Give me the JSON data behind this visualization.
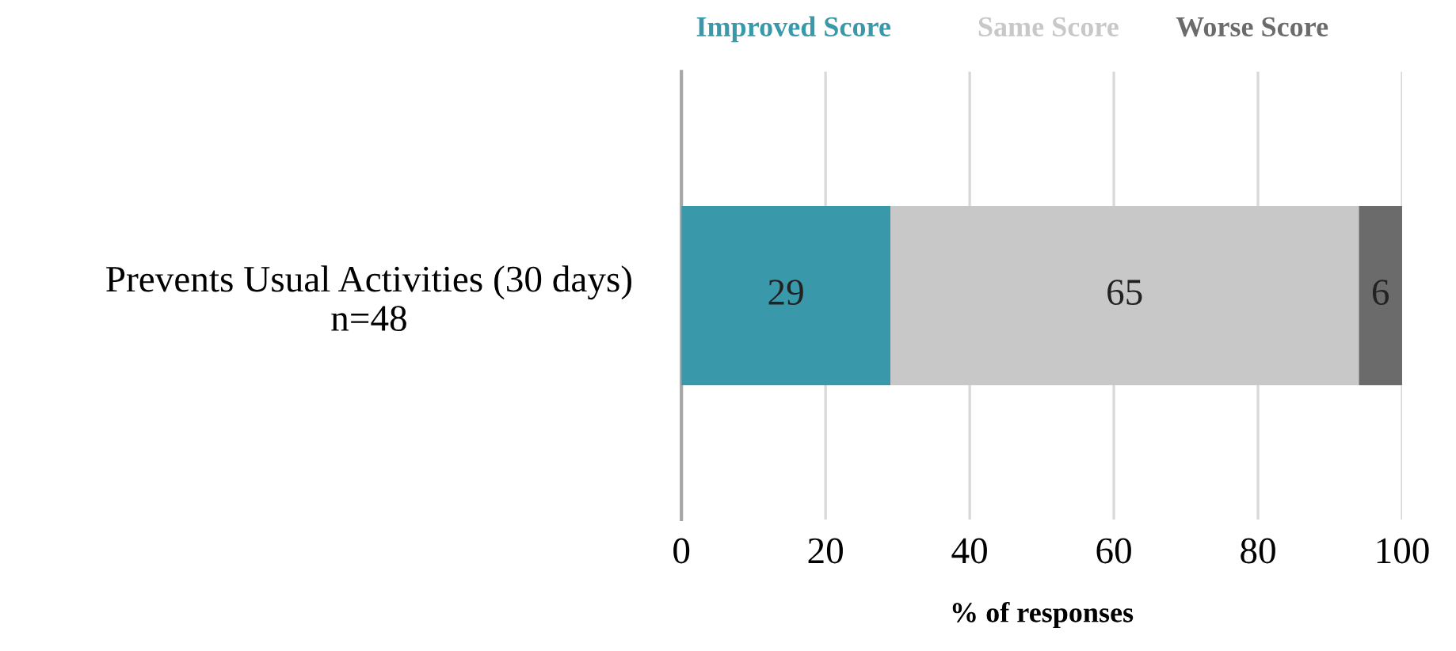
{
  "chart_data": {
    "type": "bar",
    "orientation": "horizontal",
    "stacked": true,
    "categories": [
      "Prevents Usual Activities (30 days)\nn=48"
    ],
    "series": [
      {
        "name": "Improved Score",
        "color": "#3a98ab",
        "values": [
          29
        ]
      },
      {
        "name": "Same Score",
        "color": "#c8c8c8",
        "values": [
          65
        ]
      },
      {
        "name": "Worse Score",
        "color": "#6b6b6b",
        "values": [
          6
        ]
      }
    ],
    "xlabel": "% of responses",
    "xlim": [
      0,
      100
    ],
    "xticks": [
      0,
      20,
      40,
      60,
      80,
      100
    ],
    "grid": "x",
    "legend": "top",
    "data_labels": true
  }
}
